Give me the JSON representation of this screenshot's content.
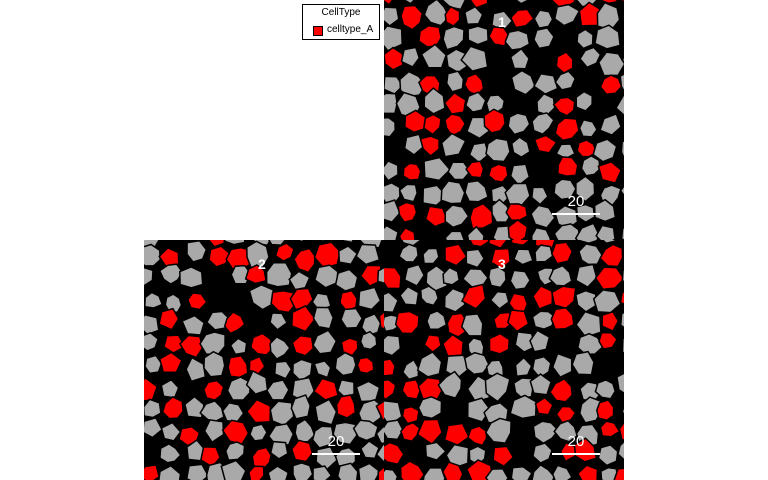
{
  "legend": {
    "title": "CellType",
    "items": [
      {
        "label": "celltype_A",
        "color": "#ff0000"
      }
    ]
  },
  "colors": {
    "background": "#000000",
    "cell_other": "#a9a9a9",
    "cell_type_a": "#ff0000",
    "annotation": "#ffffff"
  },
  "panels": [
    {
      "label": "1",
      "scalebar_text": "20",
      "seed": 11
    },
    {
      "label": "2",
      "scalebar_text": "20",
      "seed": 29
    },
    {
      "label": "3",
      "scalebar_text": "20",
      "seed": 47
    }
  ]
}
